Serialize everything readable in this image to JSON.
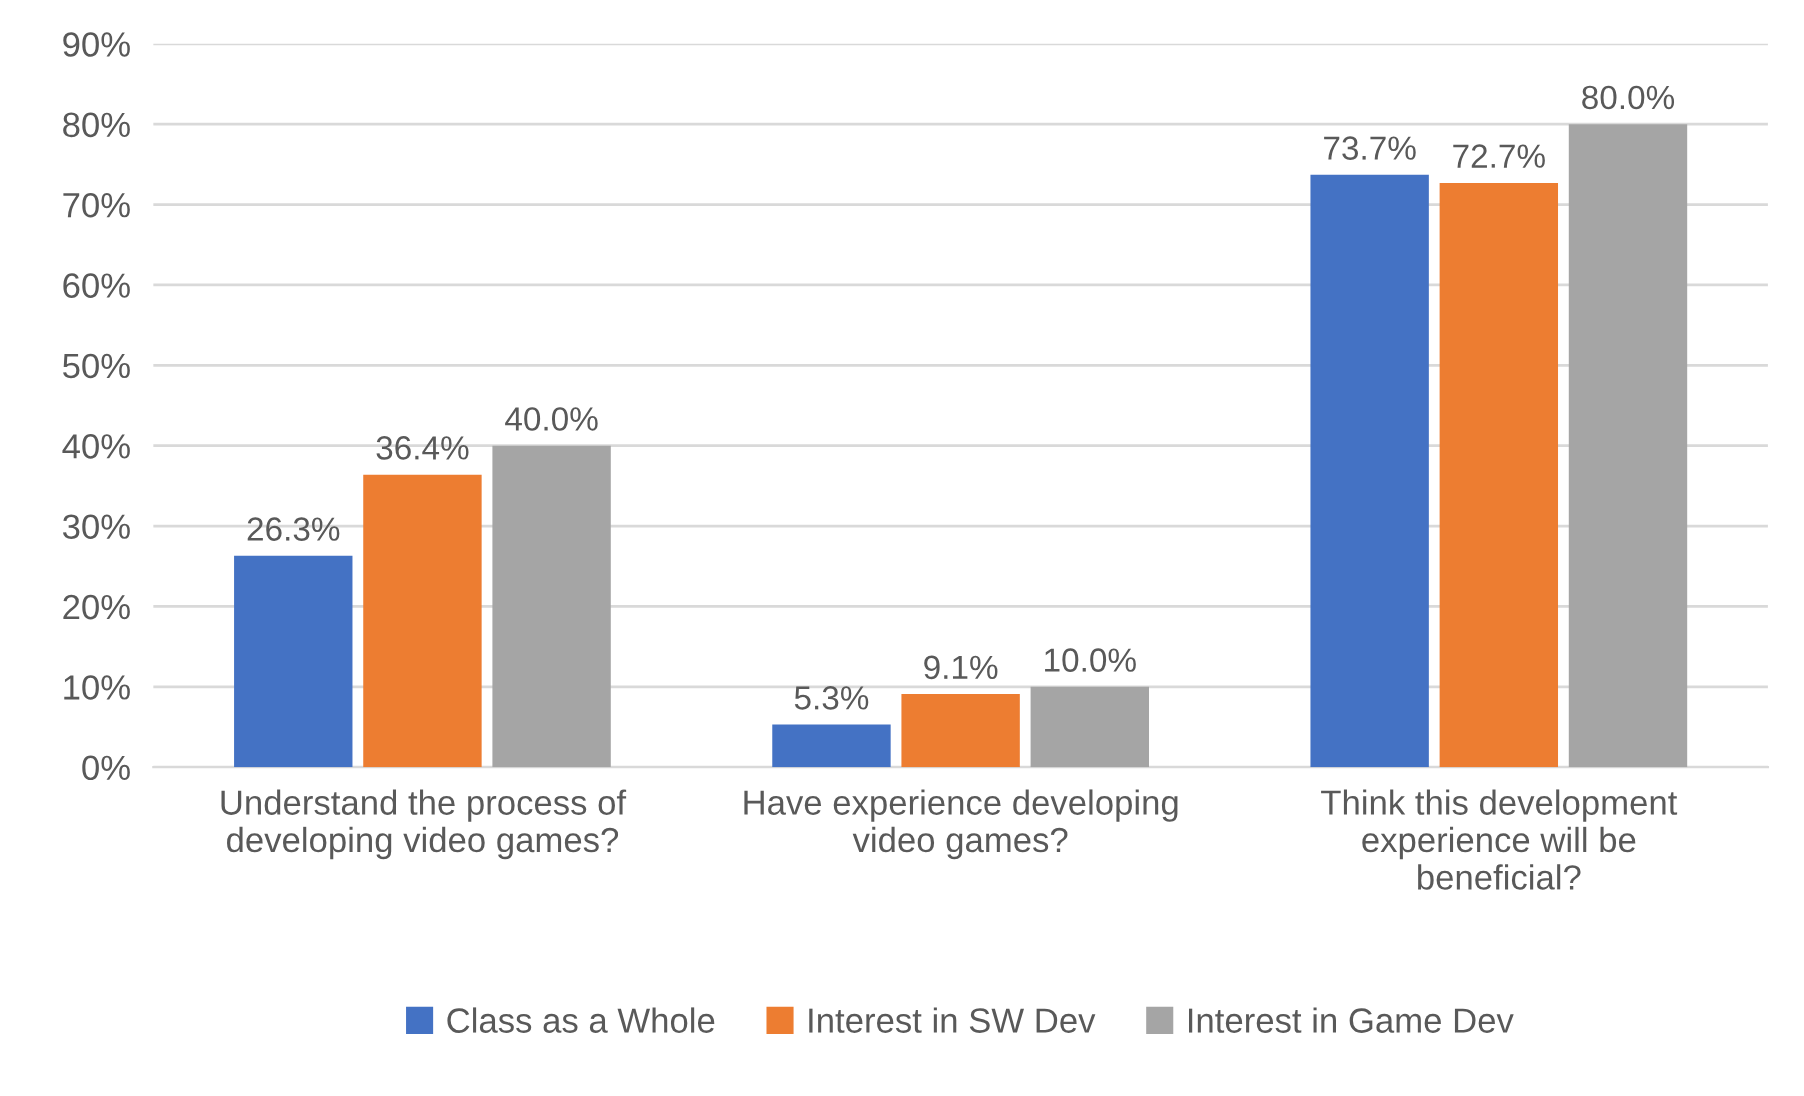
{
  "chart_data": {
    "type": "bar",
    "categories": [
      "Understand the process of\ndeveloping video games?",
      "Have experience developing\nvideo games?",
      "Think this development\nexperience will be\nbeneficial?"
    ],
    "series": [
      {
        "name": "Class as a Whole",
        "color": "#4472c4",
        "values": [
          26.3,
          5.3,
          73.7
        ],
        "value_labels": [
          "26.3%",
          "5.3%",
          "73.7%"
        ]
      },
      {
        "name": "Interest in SW Dev",
        "color": "#ed7d31",
        "values": [
          36.4,
          9.1,
          72.7
        ],
        "value_labels": [
          "36.4%",
          "9.1%",
          "72.7%"
        ]
      },
      {
        "name": "Interest in Game Dev",
        "color": "#a5a5a5",
        "values": [
          40.0,
          10.0,
          80.0
        ],
        "value_labels": [
          "40.0%",
          "10.0%",
          "80.0%"
        ]
      }
    ],
    "ylim": [
      0,
      90
    ],
    "yticks": [
      {
        "value": 0,
        "label": "0%"
      },
      {
        "value": 10,
        "label": "10%"
      },
      {
        "value": 20,
        "label": "20%"
      },
      {
        "value": 30,
        "label": "30%"
      },
      {
        "value": 40,
        "label": "40%"
      },
      {
        "value": 50,
        "label": "50%"
      },
      {
        "value": 60,
        "label": "60%"
      },
      {
        "value": 70,
        "label": "70%"
      },
      {
        "value": 80,
        "label": "80%"
      },
      {
        "value": 90,
        "label": "90%"
      }
    ],
    "grid": "y",
    "legend": "bottom"
  }
}
